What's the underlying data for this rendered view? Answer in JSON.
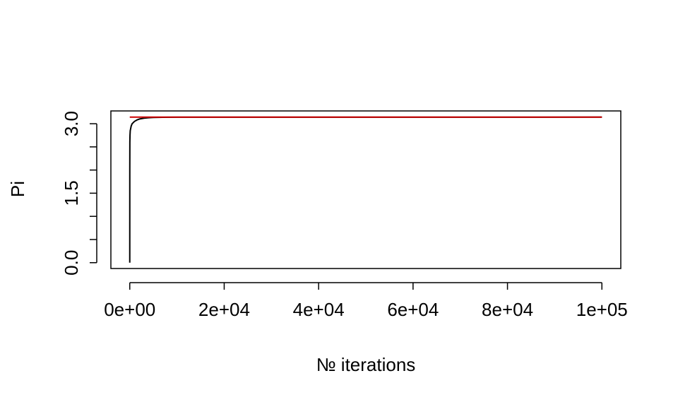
{
  "chart_data": {
    "type": "line",
    "title": "",
    "xlabel": "№ iterations",
    "ylabel": "Pi",
    "xlim": [
      -4000,
      104000
    ],
    "ylim": [
      -0.126,
      3.276
    ],
    "x_ticks": [
      0,
      20000,
      40000,
      60000,
      80000,
      100000
    ],
    "x_tick_labels": [
      "0e+00",
      "2e+04",
      "4e+04",
      "6e+04",
      "8e+04",
      "1e+05"
    ],
    "y_ticks": [
      0,
      0.5,
      1.0,
      1.5,
      2.0,
      2.5,
      3.0
    ],
    "y_tick_labels": [
      "0.0",
      "",
      "",
      "1.5",
      "",
      "",
      "3.0"
    ],
    "grid": false,
    "series": [
      {
        "color": "#000000",
        "points": [
          [
            0,
            0.0
          ],
          [
            5,
            2.0
          ],
          [
            20,
            2.6
          ],
          [
            50,
            2.75
          ],
          [
            100,
            2.85
          ],
          [
            200,
            2.9
          ],
          [
            300,
            2.95
          ],
          [
            500,
            3.0
          ],
          [
            700,
            3.02
          ],
          [
            1000,
            3.05
          ],
          [
            1500,
            3.08
          ],
          [
            2000,
            3.1
          ],
          [
            2500,
            3.11
          ],
          [
            3000,
            3.12
          ],
          [
            4000,
            3.13
          ],
          [
            5000,
            3.135
          ],
          [
            7000,
            3.138
          ],
          [
            10000,
            3.14
          ],
          [
            15000,
            3.14
          ],
          [
            30000,
            3.141
          ],
          [
            60000,
            3.1415
          ],
          [
            100000,
            3.1416
          ]
        ]
      },
      {
        "color": "#cc0000",
        "points": [
          [
            0,
            3.1416
          ],
          [
            100000,
            3.1416
          ]
        ]
      }
    ]
  }
}
